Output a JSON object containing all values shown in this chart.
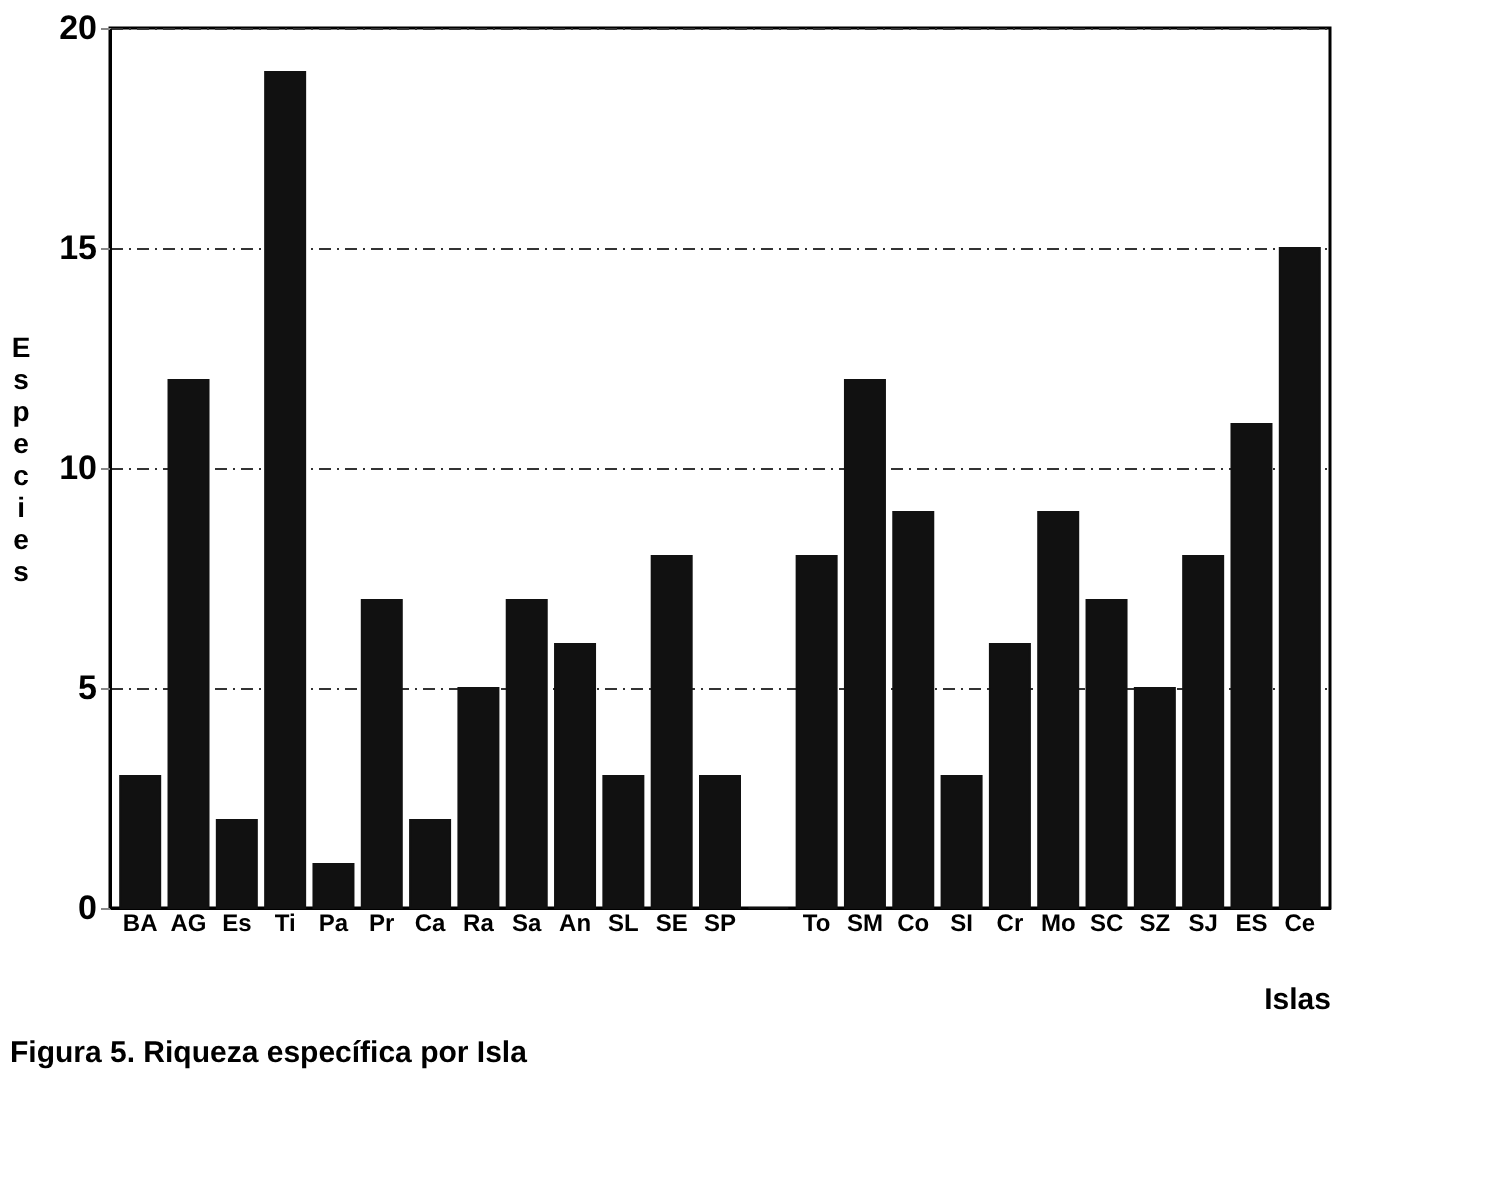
{
  "chart_data": {
    "type": "bar",
    "xlabel": "Islas",
    "ylabel": "Especies",
    "categories": [
      "BA",
      "AG",
      "Es",
      "Ti",
      "Pa",
      "Pr",
      "Ca",
      "Ra",
      "Sa",
      "An",
      "SL",
      "SE",
      "SP",
      null,
      "To",
      "SM",
      "Co",
      "SI",
      "Cr",
      "Mo",
      "SC",
      "SZ",
      "SJ",
      "ES",
      "Ce"
    ],
    "values": [
      3,
      12,
      2,
      19,
      1,
      7,
      2,
      5,
      7,
      6,
      3,
      8,
      3,
      0,
      8,
      12,
      9,
      3,
      6,
      9,
      7,
      5,
      8,
      11,
      15
    ],
    "color": "#111111",
    "ylim": [
      0,
      20
    ],
    "yticks": [
      0,
      5,
      10,
      15,
      20
    ],
    "grid": "y",
    "annotations": [
      "Figura 5. Riqueza específica por Isla"
    ]
  }
}
